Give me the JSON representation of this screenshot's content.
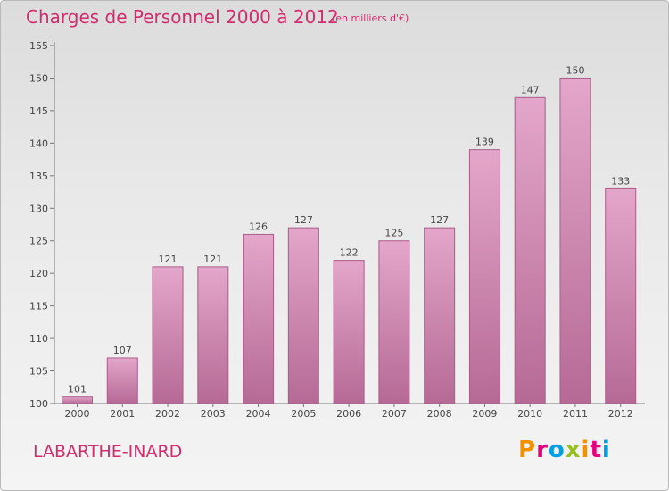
{
  "header": {
    "title": "Charges de Personnel 2000 à 2012",
    "subtitle": "(en milliers d'€)"
  },
  "footer": {
    "commune": "LABARTHE-INARD",
    "logo_text": "Proxiti",
    "logo_colors": [
      "#f39200",
      "#e6007e",
      "#00a0e3",
      "#95c11f",
      "#f39200",
      "#e6007e",
      "#00a0e3"
    ]
  },
  "chart_data": {
    "type": "bar",
    "title": "Charges de Personnel 2000 à 2012",
    "subtitle": "(en milliers d'€)",
    "xlabel": "",
    "ylabel": "",
    "categories": [
      "2000",
      "2001",
      "2002",
      "2003",
      "2004",
      "2005",
      "2006",
      "2007",
      "2008",
      "2009",
      "2010",
      "2011",
      "2012"
    ],
    "values": [
      101,
      107,
      121,
      121,
      126,
      127,
      122,
      125,
      127,
      139,
      147,
      150,
      133
    ],
    "ylim": [
      100,
      155
    ],
    "yticks": [
      100,
      105,
      110,
      115,
      120,
      125,
      130,
      135,
      140,
      145,
      150,
      155
    ],
    "grid": false,
    "bar_color": "#c9669b",
    "bar_highlight": "#e3a4c9"
  }
}
